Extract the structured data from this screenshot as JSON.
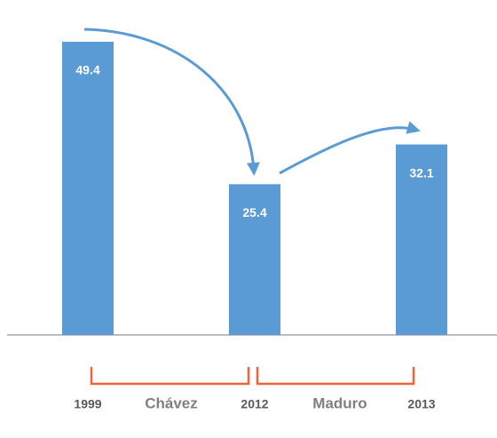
{
  "chart_data": {
    "type": "bar",
    "categories": [
      "1999",
      "2012",
      "2013"
    ],
    "values": [
      49.4,
      25.4,
      32.1
    ],
    "color": "#5b9bd5",
    "ylim": [
      0,
      50
    ],
    "annotations": [
      {
        "text": "Chávez"
      },
      {
        "text": "Maduro"
      }
    ]
  }
}
